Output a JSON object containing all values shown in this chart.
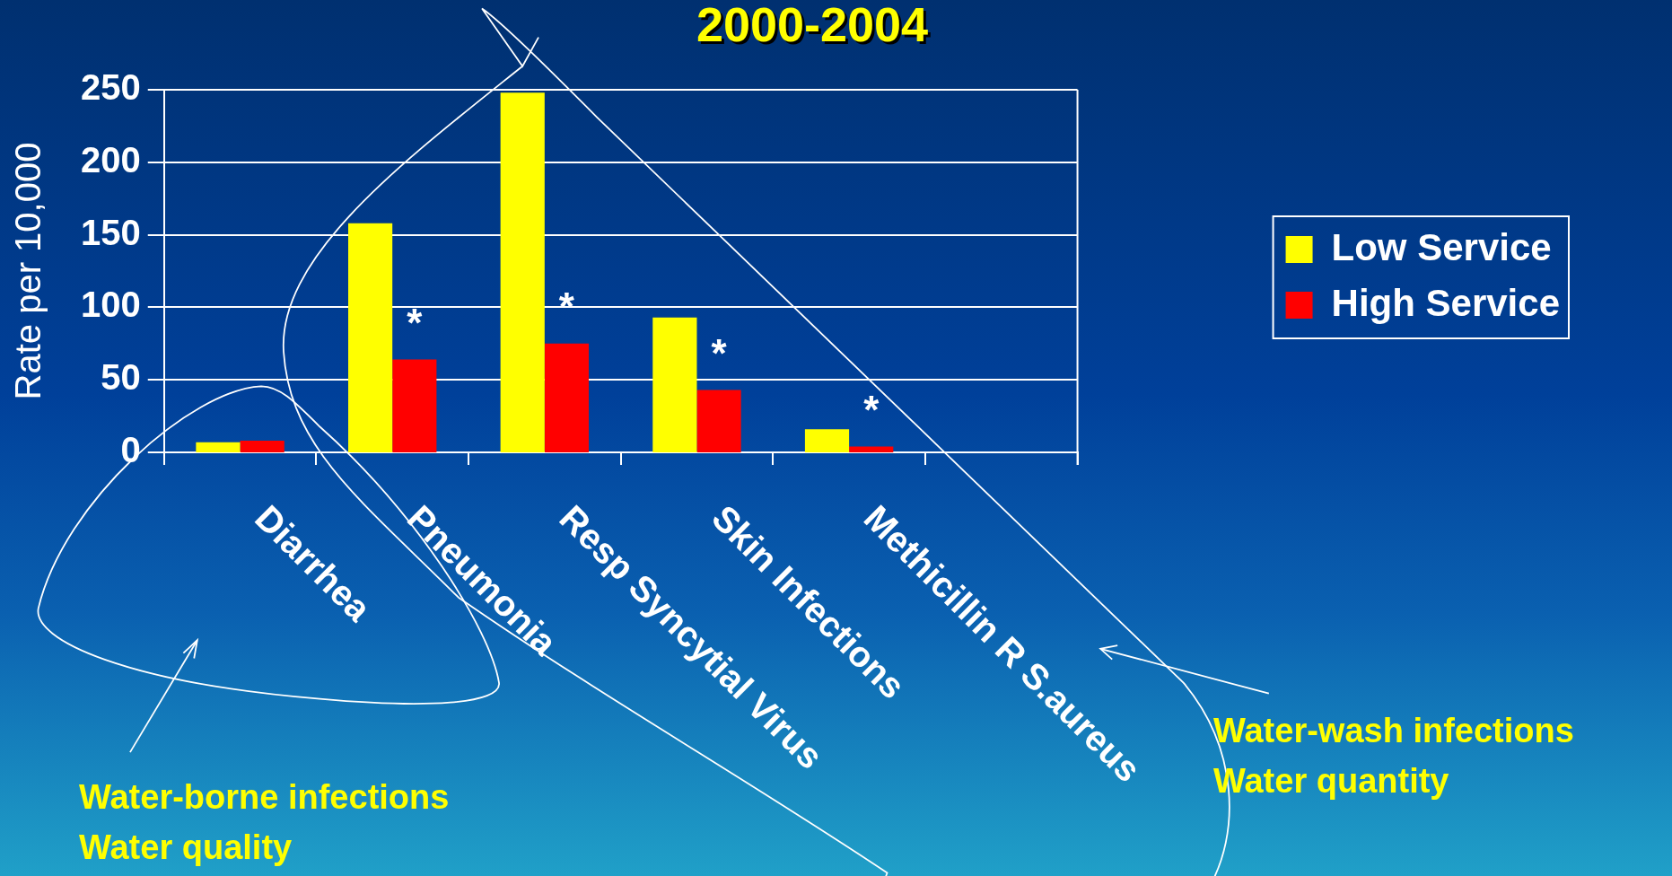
{
  "chart_data": {
    "type": "bar",
    "title": "2000-2004",
    "ylabel": "Rate per 10,000",
    "categories": [
      "Diarrhea",
      "Pneumonia",
      "Resp Syncytial Virus",
      "Skin Infections",
      "Methicillin R S.aureus",
      null
    ],
    "series": [
      {
        "name": "Low Service",
        "color": "#ffff00",
        "values": [
          7,
          158,
          248,
          93,
          16,
          null
        ]
      },
      {
        "name": "High Service",
        "color": "#ff0000",
        "values": [
          8,
          64,
          75,
          43,
          4,
          null
        ]
      }
    ],
    "ylim": [
      0,
      250
    ],
    "yticks": [
      0,
      50,
      100,
      150,
      200,
      250
    ],
    "grid": "y",
    "legend": "right",
    "annotations": [
      "*",
      "*",
      "*",
      "*",
      "Water-borne infections\nWater quality",
      "Water-wash infections\nWater quantity"
    ]
  }
}
